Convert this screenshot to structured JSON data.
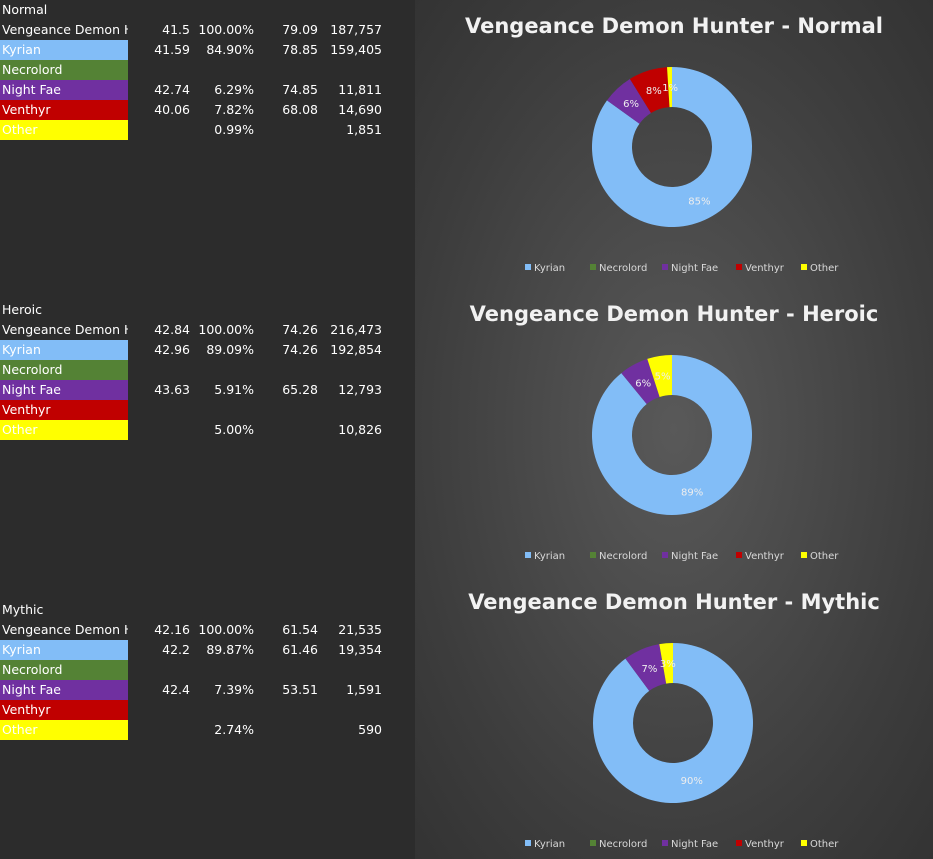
{
  "colors": {
    "Kyrian": "#82bdf7",
    "Necrolord": "#548235",
    "Night Fae": "#7030a0",
    "Venthyr": "#c00000",
    "Other": "#ffff00"
  },
  "sections": [
    {
      "title": "Normal",
      "rows": [
        {
          "name": "Vengeance Demon H",
          "c1": "41.5",
          "c2": "100.00%",
          "c3": "79.09",
          "c4": "187,757"
        },
        {
          "name": "Kyrian",
          "c1": "41.59",
          "c2": "84.90%",
          "c3": "78.85",
          "c4": "159,405"
        },
        {
          "name": "Necrolord",
          "c1": "",
          "c2": "",
          "c3": "",
          "c4": ""
        },
        {
          "name": "Night Fae",
          "c1": "42.74",
          "c2": "6.29%",
          "c3": "74.85",
          "c4": "11,811"
        },
        {
          "name": "Venthyr",
          "c1": "40.06",
          "c2": "7.82%",
          "c3": "68.08",
          "c4": "14,690"
        },
        {
          "name": "Other",
          "c1": "",
          "c2": "0.99%",
          "c3": "",
          "c4": "1,851"
        }
      ]
    },
    {
      "title": "Heroic",
      "rows": [
        {
          "name": "Vengeance Demon H",
          "c1": "42.84",
          "c2": "100.00%",
          "c3": "74.26",
          "c4": "216,473"
        },
        {
          "name": "Kyrian",
          "c1": "42.96",
          "c2": "89.09%",
          "c3": "74.26",
          "c4": "192,854"
        },
        {
          "name": "Necrolord",
          "c1": "",
          "c2": "",
          "c3": "",
          "c4": ""
        },
        {
          "name": "Night Fae",
          "c1": "43.63",
          "c2": "5.91%",
          "c3": "65.28",
          "c4": "12,793"
        },
        {
          "name": "Venthyr",
          "c1": "",
          "c2": "",
          "c3": "",
          "c4": ""
        },
        {
          "name": "Other",
          "c1": "",
          "c2": "5.00%",
          "c3": "",
          "c4": "10,826"
        }
      ]
    },
    {
      "title": "Mythic",
      "rows": [
        {
          "name": "Vengeance Demon H",
          "c1": "42.16",
          "c2": "100.00%",
          "c3": "61.54",
          "c4": "21,535"
        },
        {
          "name": "Kyrian",
          "c1": "42.2",
          "c2": "89.87%",
          "c3": "61.46",
          "c4": "19,354"
        },
        {
          "name": "Necrolord",
          "c1": "",
          "c2": "",
          "c3": "",
          "c4": ""
        },
        {
          "name": "Night Fae",
          "c1": "42.4",
          "c2": "7.39%",
          "c3": "53.51",
          "c4": "1,591"
        },
        {
          "name": "Venthyr",
          "c1": "",
          "c2": "",
          "c3": "",
          "c4": ""
        },
        {
          "name": "Other",
          "c1": "",
          "c2": "2.74%",
          "c3": "",
          "c4": "590"
        }
      ]
    }
  ],
  "chart_data": [
    {
      "type": "pie",
      "title": "Vengeance Demon Hunter - Normal",
      "categories": [
        "Kyrian",
        "Necrolord",
        "Night Fae",
        "Venthyr",
        "Other"
      ],
      "values": [
        84.9,
        0,
        6.29,
        7.82,
        0.99
      ],
      "labels": [
        "85%",
        "",
        "6%",
        "8%",
        "1%"
      ],
      "legend": "bottom"
    },
    {
      "type": "pie",
      "title": "Vengeance Demon Hunter - Heroic",
      "categories": [
        "Kyrian",
        "Necrolord",
        "Night Fae",
        "Venthyr",
        "Other"
      ],
      "values": [
        89.09,
        0,
        5.91,
        0,
        5.0
      ],
      "labels": [
        "89%",
        "",
        "6%",
        "",
        "5%"
      ],
      "legend": "bottom"
    },
    {
      "type": "pie",
      "title": "Vengeance Demon Hunter - Mythic",
      "categories": [
        "Kyrian",
        "Necrolord",
        "Night Fae",
        "Venthyr",
        "Other"
      ],
      "values": [
        89.87,
        0,
        7.39,
        0,
        2.74
      ],
      "labels": [
        "90%",
        "",
        "7%",
        "",
        "3%"
      ],
      "legend": "bottom"
    }
  ]
}
